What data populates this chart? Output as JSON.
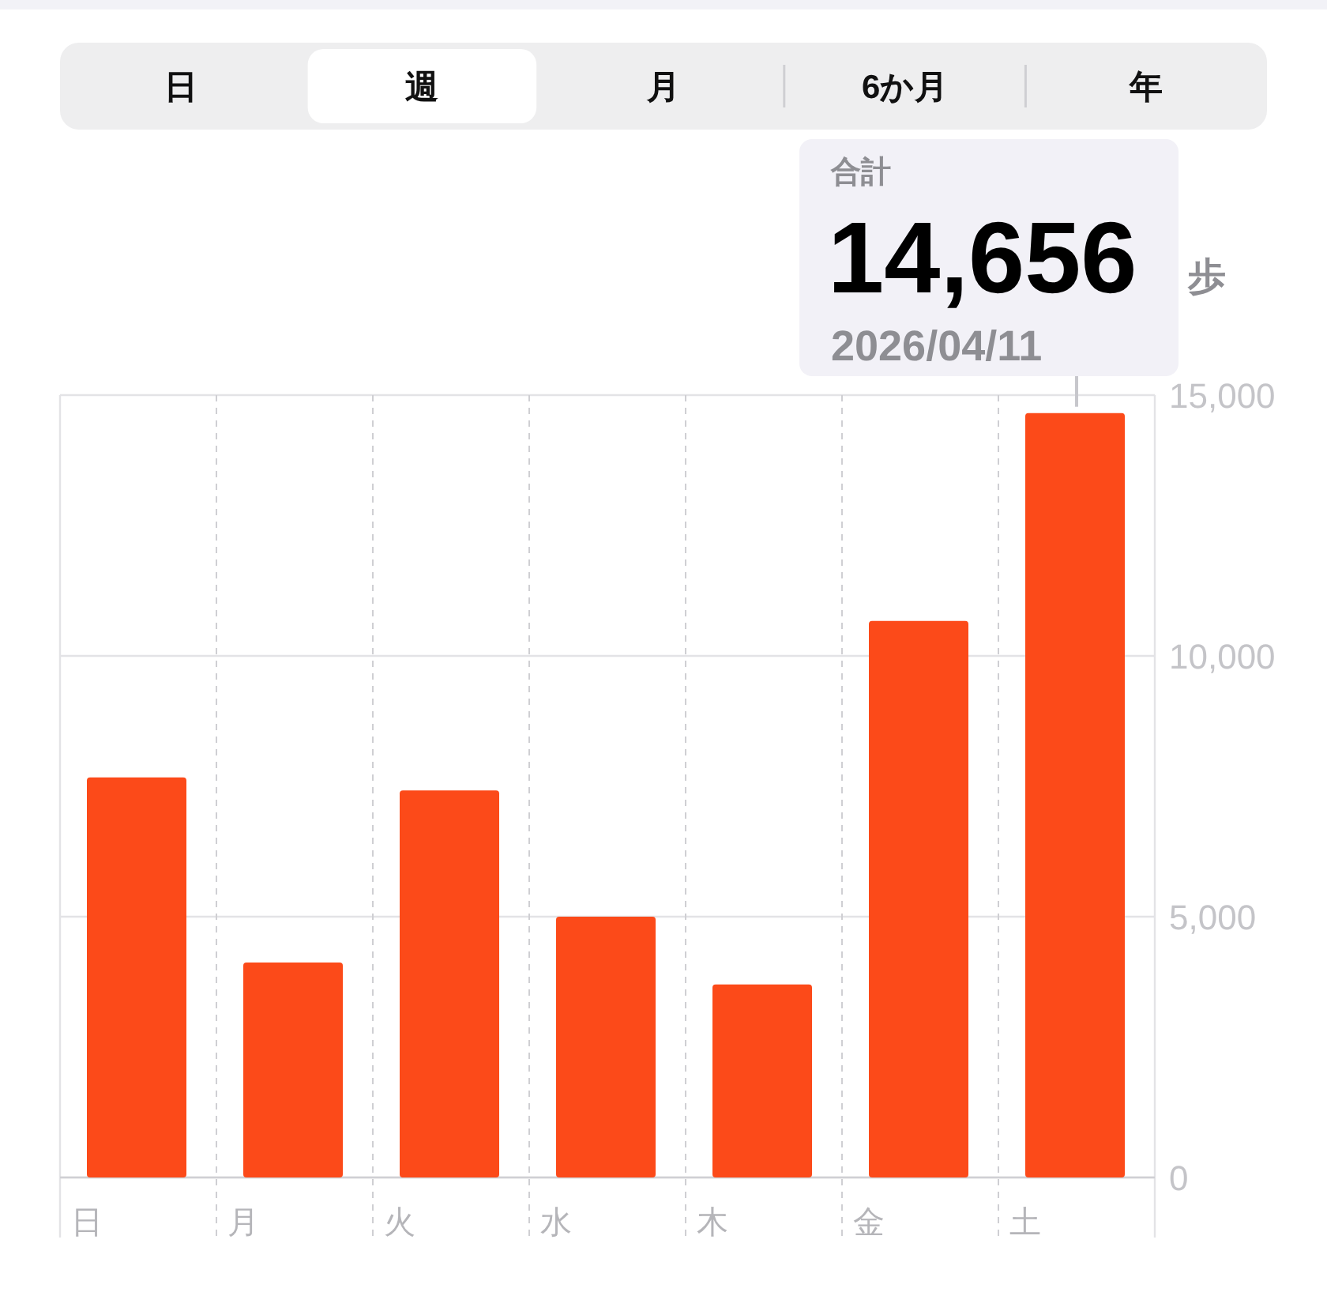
{
  "chart_data": {
    "type": "bar",
    "categories": [
      "日",
      "月",
      "火",
      "水",
      "木",
      "金",
      "土"
    ],
    "values": [
      7670,
      4120,
      7420,
      5000,
      3700,
      10670,
      14656
    ],
    "color": "#fc4a19",
    "ylim": [
      0,
      15000
    ],
    "yticks": [
      0,
      {
        "value": 5000,
        "label": "5,000"
      },
      {
        "value": 10000,
        "label": "10,000"
      },
      {
        "value": 15000,
        "label": "15,000"
      }
    ],
    "grid": true,
    "annotations": [
      "日",
      "週",
      "月",
      "6か月",
      "年",
      "合計",
      {
        "text": "14,656",
        "x": "土",
        "y": 14656
      },
      "歩",
      "2026/04/11"
    ]
  }
}
